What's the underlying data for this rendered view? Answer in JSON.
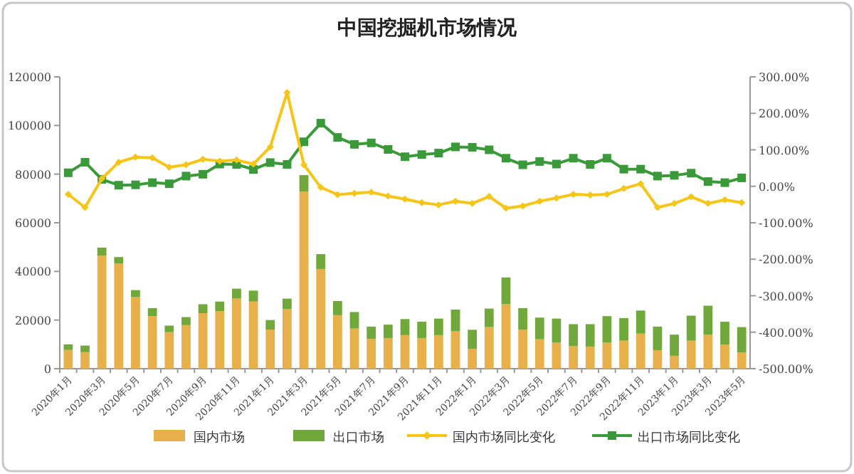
{
  "chart_data": {
    "type": "bar",
    "stacked": true,
    "title": "中国挖掘机市场情况",
    "categories": [
      "2020年1月",
      null,
      "2020年3月",
      null,
      "2020年5月",
      null,
      "2020年7月",
      null,
      "2020年9月",
      null,
      "2020年11月",
      null,
      "2021年1月",
      null,
      "2021年3月",
      null,
      "2021年5月",
      null,
      "2021年7月",
      null,
      "2021年9月",
      null,
      "2021年11月",
      null,
      "2022年1月",
      null,
      "2022年3月",
      null,
      "2022年5月",
      null,
      "2022年7月",
      null,
      "2022年9月",
      null,
      "2022年11月",
      null,
      "2023年1月",
      null,
      "2023年3月",
      null,
      "2023年5月"
    ],
    "series": [
      {
        "name": "国内市场",
        "color": "#e8b04a",
        "values": [
          7700,
          6800,
          46500,
          43200,
          29400,
          21600,
          15000,
          17900,
          22800,
          23700,
          28800,
          27600,
          16100,
          24500,
          72800,
          41000,
          22000,
          16500,
          12300,
          12600,
          13800,
          12500,
          13800,
          15400,
          8200,
          17100,
          26500,
          16000,
          12100,
          10700,
          9300,
          9100,
          10700,
          11500,
          14400,
          7600,
          5300,
          11500,
          14000,
          9900,
          6600
        ]
      },
      {
        "name": "出口市场",
        "color": "#70a83b",
        "values": [
          2300,
          2700,
          3300,
          2700,
          2900,
          3300,
          2700,
          3300,
          3700,
          3900,
          4100,
          4500,
          3900,
          4300,
          6800,
          6100,
          5800,
          6800,
          5000,
          5500,
          6600,
          6800,
          6800,
          8900,
          7800,
          7600,
          11000,
          8900,
          8900,
          9900,
          9000,
          9200,
          10900,
          9300,
          9500,
          9700,
          8700,
          10300,
          11900,
          9400,
          10500
        ]
      },
      {
        "name": "国内市场同比变化",
        "type": "line",
        "axis": "y2",
        "color": "#f5c518",
        "marker": "diamond",
        "values": [
          -22,
          -58,
          21,
          66,
          80,
          78,
          52,
          59,
          74,
          69,
          72,
          61,
          108,
          257,
          59,
          -3,
          -23,
          -19,
          -16,
          -27,
          -35,
          -45,
          -51,
          -41,
          -47,
          -28,
          -60,
          -54,
          -41,
          -32,
          -22,
          -24,
          -22,
          -6,
          7,
          -58,
          -47,
          -29,
          -47,
          -37,
          -45
        ]
      },
      {
        "name": "出口市场同比变化",
        "type": "line",
        "axis": "y2",
        "color": "#3a9a3a",
        "marker": "square",
        "values": [
          37,
          66,
          19,
          3,
          4,
          10,
          7,
          28,
          33,
          61,
          60,
          46,
          65,
          60,
          122,
          173,
          134,
          115,
          119,
          101,
          81,
          87,
          91,
          108,
          107,
          100,
          77,
          59,
          68,
          61,
          77,
          60,
          77,
          47,
          47,
          28,
          30,
          36,
          13,
          10,
          23
        ]
      }
    ],
    "ylim": [
      0,
      120000
    ],
    "yticks": [
      0,
      20000,
      40000,
      60000,
      80000,
      100000,
      120000
    ],
    "y2lim": [
      -500,
      300
    ],
    "y2ticks": [
      {
        "value": -500,
        "label": "-500.00%"
      },
      {
        "value": -400,
        "label": "-400.00%"
      },
      {
        "value": -300,
        "label": "-300.00%"
      },
      {
        "value": -200,
        "label": "-200.00%"
      },
      {
        "value": -100,
        "label": "-100.00%"
      },
      {
        "value": 0,
        "label": "0.00%"
      },
      {
        "value": 100,
        "label": "100.00%"
      },
      {
        "value": 200,
        "label": "200.00%"
      },
      {
        "value": 300,
        "label": "300.00%"
      }
    ],
    "legend": "bottom",
    "grid": false
  }
}
